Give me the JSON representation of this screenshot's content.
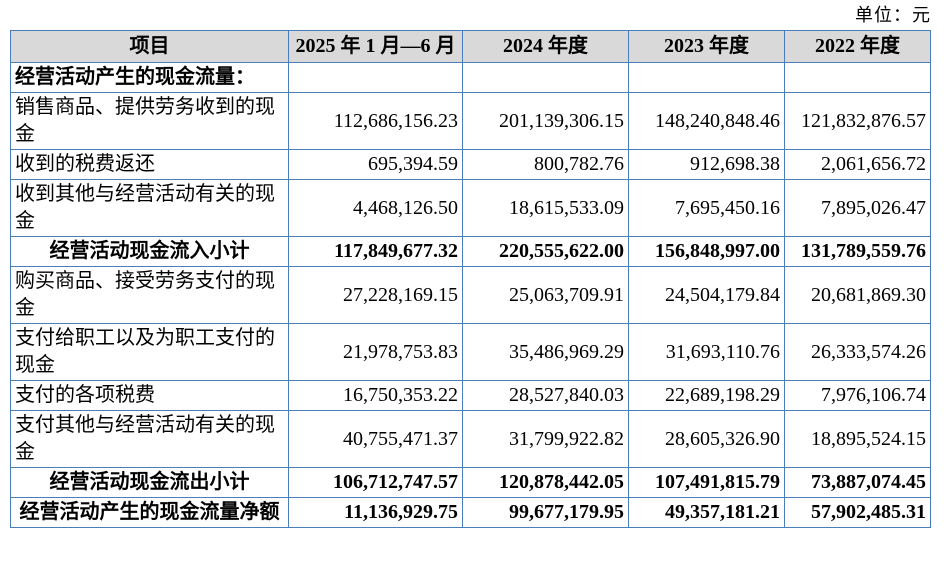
{
  "unit_label": "单位：元",
  "colors": {
    "border": "#4a7ebb",
    "header_bg": "#d9d9d9"
  },
  "table": {
    "columns": [
      "项目",
      "2025 年 1 月—6 月",
      "2024 年度",
      "2023 年度",
      "2022 年度"
    ],
    "rows": [
      {
        "style": "section",
        "label": "经营活动产生的现金流量：",
        "values": [
          "",
          "",
          "",
          ""
        ]
      },
      {
        "style": "item",
        "label": "销售商品、提供劳务收到的现金",
        "values": [
          "112,686,156.23",
          "201,139,306.15",
          "148,240,848.46",
          "121,832,876.57"
        ]
      },
      {
        "style": "item",
        "label": "收到的税费返还",
        "values": [
          "695,394.59",
          "800,782.76",
          "912,698.38",
          "2,061,656.72"
        ]
      },
      {
        "style": "item",
        "label": "收到其他与经营活动有关的现金",
        "values": [
          "4,468,126.50",
          "18,615,533.09",
          "7,695,450.16",
          "7,895,026.47"
        ]
      },
      {
        "style": "subtotal",
        "label": "经营活动现金流入小计",
        "values": [
          "117,849,677.32",
          "220,555,622.00",
          "156,848,997.00",
          "131,789,559.76"
        ]
      },
      {
        "style": "item",
        "label": "购买商品、接受劳务支付的现金",
        "values": [
          "27,228,169.15",
          "25,063,709.91",
          "24,504,179.84",
          "20,681,869.30"
        ]
      },
      {
        "style": "item",
        "label": "支付给职工以及为职工支付的现金",
        "values": [
          "21,978,753.83",
          "35,486,969.29",
          "31,693,110.76",
          "26,333,574.26"
        ]
      },
      {
        "style": "item",
        "label": "支付的各项税费",
        "values": [
          "16,750,353.22",
          "28,527,840.03",
          "22,689,198.29",
          "7,976,106.74"
        ]
      },
      {
        "style": "item",
        "label": "支付其他与经营活动有关的现金",
        "values": [
          "40,755,471.37",
          "31,799,922.82",
          "28,605,326.90",
          "18,895,524.15"
        ]
      },
      {
        "style": "subtotal",
        "label": "经营活动现金流出小计",
        "values": [
          "106,712,747.57",
          "120,878,442.05",
          "107,491,815.79",
          "73,887,074.45"
        ]
      },
      {
        "style": "subtotal",
        "label": "经营活动产生的现金流量净额",
        "values": [
          "11,136,929.75",
          "99,677,179.95",
          "49,357,181.21",
          "57,902,485.31"
        ]
      }
    ]
  }
}
